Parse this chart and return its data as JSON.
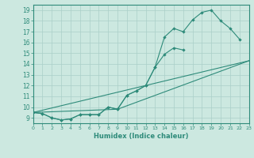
{
  "xlabel": "Humidex (Indice chaleur)",
  "xlim": [
    0,
    23
  ],
  "ylim": [
    8.5,
    19.5
  ],
  "yticks": [
    9,
    10,
    11,
    12,
    13,
    14,
    15,
    16,
    17,
    18,
    19
  ],
  "xticks": [
    0,
    1,
    2,
    3,
    4,
    5,
    6,
    7,
    8,
    9,
    10,
    11,
    12,
    13,
    14,
    15,
    16,
    17,
    18,
    19,
    20,
    21,
    22,
    23
  ],
  "line_color": "#2e8b7a",
  "bg_color": "#cce8e0",
  "grid_color": "#aacfc8",
  "line1_x": [
    0,
    1,
    2,
    3,
    4,
    5,
    6,
    7,
    8,
    9,
    10,
    11,
    12,
    13,
    14,
    15,
    16,
    17,
    18,
    19,
    20,
    21,
    22
  ],
  "line1_y": [
    9.5,
    9.4,
    9.0,
    8.8,
    8.9,
    9.3,
    9.3,
    9.3,
    10.0,
    9.8,
    11.1,
    11.5,
    12.0,
    13.7,
    16.5,
    17.3,
    17.0,
    18.1,
    18.8,
    19.0,
    18.0,
    17.3,
    16.3
  ],
  "line2_x": [
    0,
    1,
    2,
    3,
    4,
    5,
    6,
    7,
    8,
    9,
    10,
    11,
    12,
    13,
    14,
    15,
    16
  ],
  "line2_y": [
    9.5,
    9.4,
    9.0,
    8.8,
    8.9,
    9.3,
    9.3,
    9.3,
    10.0,
    9.8,
    11.1,
    11.5,
    12.0,
    13.7,
    14.9,
    15.5,
    15.3
  ],
  "line3_x": [
    0,
    23
  ],
  "line3_y": [
    9.5,
    14.3
  ],
  "line4_x": [
    0,
    9,
    23
  ],
  "line4_y": [
    9.5,
    9.8,
    14.3
  ]
}
